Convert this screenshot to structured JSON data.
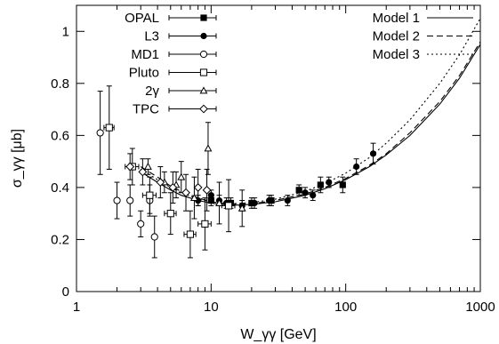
{
  "chart_data": {
    "type": "scatter",
    "title": "",
    "xlabel": "W_γγ [GeV]",
    "ylabel": "σ_γγ [μb]",
    "x_scale": "log",
    "xlim": [
      1,
      1000
    ],
    "ylim": [
      0,
      1.1
    ],
    "xticks": [
      1,
      10,
      100,
      1000
    ],
    "xtick_labels": [
      "1",
      "10",
      "100",
      "1000"
    ],
    "yticks": [
      0,
      0.2,
      0.4,
      0.6,
      0.8,
      1.0
    ],
    "ytick_labels": [
      "0",
      "0.2",
      "0.4",
      "0.6",
      "0.8",
      "1"
    ],
    "grid": false,
    "legend_placement": "top-left and top-right",
    "series": [
      {
        "name": "OPAL",
        "marker": "filled-square",
        "points": [
          {
            "x": 10.0,
            "y": 0.35,
            "yerr": 0.02
          },
          {
            "x": 14.0,
            "y": 0.34,
            "yerr": 0.02
          },
          {
            "x": 20.0,
            "y": 0.34,
            "yerr": 0.02
          },
          {
            "x": 28.0,
            "y": 0.35,
            "yerr": 0.02
          },
          {
            "x": 45.0,
            "y": 0.39,
            "yerr": 0.02
          },
          {
            "x": 65.0,
            "y": 0.41,
            "yerr": 0.03
          },
          {
            "x": 95.0,
            "y": 0.41,
            "yerr": 0.03
          }
        ]
      },
      {
        "name": "L3",
        "marker": "filled-circle",
        "points": [
          {
            "x": 8.0,
            "y": 0.35,
            "yerr": 0.02
          },
          {
            "x": 10.0,
            "y": 0.37,
            "yerr": 0.02
          },
          {
            "x": 11.5,
            "y": 0.35,
            "yerr": 0.02
          },
          {
            "x": 13.0,
            "y": 0.34,
            "yerr": 0.02
          },
          {
            "x": 17.0,
            "y": 0.33,
            "yerr": 0.02
          },
          {
            "x": 21.0,
            "y": 0.34,
            "yerr": 0.02
          },
          {
            "x": 27.0,
            "y": 0.35,
            "yerr": 0.02
          },
          {
            "x": 37.0,
            "y": 0.35,
            "yerr": 0.02
          },
          {
            "x": 50.0,
            "y": 0.38,
            "yerr": 0.02
          },
          {
            "x": 57.0,
            "y": 0.37,
            "yerr": 0.02
          },
          {
            "x": 75.0,
            "y": 0.42,
            "yerr": 0.02
          },
          {
            "x": 120.0,
            "y": 0.48,
            "yerr": 0.03
          },
          {
            "x": 160.0,
            "y": 0.53,
            "yerr": 0.04
          }
        ]
      },
      {
        "name": "MD1",
        "marker": "open-circle",
        "points": [
          {
            "x": 1.5,
            "y": 0.61,
            "yerr": 0.16
          },
          {
            "x": 2.0,
            "y": 0.35,
            "yerr": 0.07
          },
          {
            "x": 2.5,
            "y": 0.35,
            "yerr": 0.06
          },
          {
            "x": 3.0,
            "y": 0.26,
            "yerr": 0.05
          },
          {
            "x": 3.5,
            "y": 0.35,
            "yerr": 0.06
          },
          {
            "x": 3.8,
            "y": 0.21,
            "yerr": 0.08
          }
        ]
      },
      {
        "name": "Pluto",
        "marker": "open-square",
        "points": [
          {
            "x": 1.75,
            "y": 0.63,
            "xerr": 0.15,
            "yerr": 0.16
          },
          {
            "x": 2.6,
            "y": 0.48,
            "xerr": 0.3,
            "yerr": 0.07
          },
          {
            "x": 3.5,
            "y": 0.37,
            "xerr": 0.4,
            "yerr": 0.07
          },
          {
            "x": 5.0,
            "y": 0.3,
            "xerr": 0.5,
            "yerr": 0.08
          },
          {
            "x": 7.0,
            "y": 0.22,
            "xerr": 0.7,
            "yerr": 0.09
          },
          {
            "x": 9.0,
            "y": 0.26,
            "xerr": 1.0,
            "yerr": 0.1
          },
          {
            "x": 13.5,
            "y": 0.33,
            "xerr": 1.5,
            "yerr": 0.1
          }
        ]
      },
      {
        "name": "2γ",
        "marker": "open-triangle",
        "points": [
          {
            "x": 3.4,
            "y": 0.48,
            "yerr": 0.03
          },
          {
            "x": 4.5,
            "y": 0.42,
            "yerr": 0.04
          },
          {
            "x": 5.5,
            "y": 0.41,
            "yerr": 0.05
          },
          {
            "x": 6.0,
            "y": 0.44,
            "yerr": 0.06
          },
          {
            "x": 7.5,
            "y": 0.36,
            "yerr": 0.08
          },
          {
            "x": 9.5,
            "y": 0.55,
            "yerr": 0.1
          },
          {
            "x": 11.5,
            "y": 0.34,
            "yerr": 0.08
          },
          {
            "x": 17.0,
            "y": 0.32,
            "yerr": 0.07
          }
        ]
      },
      {
        "name": "TPC",
        "marker": "open-diamond",
        "points": [
          {
            "x": 2.5,
            "y": 0.48,
            "yerr": 0.05
          },
          {
            "x": 3.1,
            "y": 0.46,
            "yerr": 0.05
          },
          {
            "x": 4.2,
            "y": 0.42,
            "yerr": 0.06
          },
          {
            "x": 5.2,
            "y": 0.4,
            "yerr": 0.06
          },
          {
            "x": 6.5,
            "y": 0.38,
            "yerr": 0.07
          },
          {
            "x": 8.0,
            "y": 0.4,
            "yerr": 0.07
          },
          {
            "x": 9.3,
            "y": 0.39,
            "yerr": 0.08
          }
        ]
      }
    ],
    "curves": [
      {
        "name": "Model 1",
        "style": "solid",
        "x": [
          3,
          4,
          5,
          6,
          8,
          10,
          12,
          15,
          20,
          30,
          50,
          70,
          100,
          150,
          200,
          300,
          500,
          700,
          1000
        ],
        "y": [
          0.46,
          0.42,
          0.39,
          0.37,
          0.35,
          0.34,
          0.335,
          0.332,
          0.335,
          0.345,
          0.37,
          0.395,
          0.43,
          0.48,
          0.525,
          0.6,
          0.72,
          0.82,
          0.95
        ]
      },
      {
        "name": "Model 2",
        "style": "dashed",
        "x": [
          3,
          4,
          5,
          6,
          8,
          10,
          12,
          15,
          20,
          30,
          50,
          70,
          100,
          150,
          200,
          300,
          500,
          700,
          1000
        ],
        "y": [
          0.48,
          0.44,
          0.405,
          0.385,
          0.36,
          0.345,
          0.34,
          0.335,
          0.337,
          0.35,
          0.375,
          0.4,
          0.435,
          0.485,
          0.53,
          0.61,
          0.73,
          0.83,
          0.96
        ]
      },
      {
        "name": "Model 3",
        "style": "dotted",
        "x": [
          3,
          4,
          5,
          6,
          8,
          10,
          12,
          15,
          20,
          30,
          50,
          70,
          100,
          150,
          200,
          300,
          500,
          700,
          1000
        ],
        "y": [
          0.47,
          0.43,
          0.4,
          0.38,
          0.355,
          0.345,
          0.34,
          0.338,
          0.342,
          0.355,
          0.385,
          0.415,
          0.455,
          0.515,
          0.57,
          0.66,
          0.8,
          0.91,
          1.05
        ]
      }
    ]
  }
}
